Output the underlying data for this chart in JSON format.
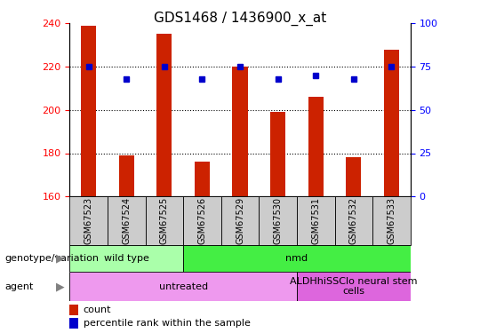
{
  "title": "GDS1468 / 1436900_x_at",
  "samples": [
    "GSM67523",
    "GSM67524",
    "GSM67525",
    "GSM67526",
    "GSM67529",
    "GSM67530",
    "GSM67531",
    "GSM67532",
    "GSM67533"
  ],
  "count_values": [
    239,
    179,
    235,
    176,
    220,
    199,
    206,
    178,
    228
  ],
  "percentile_values": [
    75,
    68,
    75,
    68,
    75,
    68,
    70,
    68,
    75
  ],
  "ylim_left": [
    160,
    240
  ],
  "ylim_right": [
    0,
    100
  ],
  "yticks_left": [
    160,
    180,
    200,
    220,
    240
  ],
  "yticks_right": [
    0,
    25,
    50,
    75,
    100
  ],
  "bar_color": "#cc2200",
  "dot_color": "#0000cc",
  "title_fontsize": 11,
  "bar_width": 0.4,
  "genotype_groups": [
    {
      "label": "wild type",
      "start": 0,
      "end": 3,
      "color": "#aaffaa"
    },
    {
      "label": "nmd",
      "start": 3,
      "end": 9,
      "color": "#44ee44"
    }
  ],
  "agent_groups": [
    {
      "label": "untreated",
      "start": 0,
      "end": 6,
      "color": "#ee99ee"
    },
    {
      "label": "ALDHhiSSClo neural stem\ncells",
      "start": 6,
      "end": 9,
      "color": "#dd66dd"
    }
  ],
  "legend_count_label": "count",
  "legend_pct_label": "percentile rank within the sample",
  "xlabel_genotype": "genotype/variation",
  "xlabel_agent": "agent",
  "sample_box_color": "#cccccc",
  "dotted_gridlines": [
    180,
    200,
    220
  ]
}
